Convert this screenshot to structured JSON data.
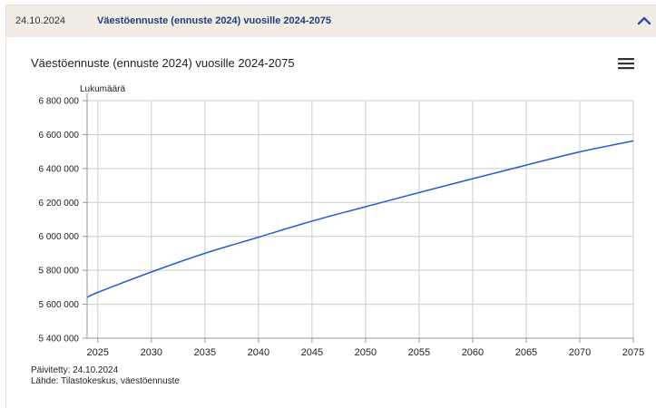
{
  "accordion": {
    "date": "24.10.2024",
    "title": "Väestöennuste (ennuste 2024) vuosille 2024-2075"
  },
  "icons": {
    "collapse": "chevron-up-icon",
    "menu": "hamburger-menu-icon"
  },
  "colors": {
    "line": "#2a5bd7",
    "header_bg": "#f1ece6",
    "header_title": "#1f3f7a",
    "grid": "#cccccc"
  },
  "chart_data": {
    "type": "line",
    "title": "Väestöennuste (ennuste 2024) vuosille 2024-2075",
    "ylabel": "Lukumäärä",
    "xlabel": "",
    "xlim": [
      2024,
      2075
    ],
    "ylim": [
      5400000,
      6800000
    ],
    "x_ticks": [
      2025,
      2030,
      2035,
      2040,
      2045,
      2050,
      2055,
      2060,
      2065,
      2070,
      2075
    ],
    "y_ticks": [
      5400000,
      5600000,
      5800000,
      6000000,
      6200000,
      6400000,
      6600000,
      6800000
    ],
    "y_tick_labels": [
      "5 400 000",
      "5 600 000",
      "5 800 000",
      "6 000 000",
      "6 200 000",
      "6 400 000",
      "6 600 000",
      "6 800 000"
    ],
    "grid": true,
    "legend": "none",
    "series": [
      {
        "x": [
          2024,
          2025,
          2030,
          2035,
          2040,
          2045,
          2050,
          2055,
          2060,
          2065,
          2070,
          2075
        ],
        "values": [
          5640000,
          5670000,
          5790000,
          5900000,
          5995000,
          6090000,
          6175000,
          6258000,
          6340000,
          6420000,
          6498000,
          6563000
        ]
      }
    ]
  },
  "footer": {
    "updated": "Päivitetty: 24.10.2024",
    "source": "Lähde: Tilastokeskus, väestöennuste"
  }
}
